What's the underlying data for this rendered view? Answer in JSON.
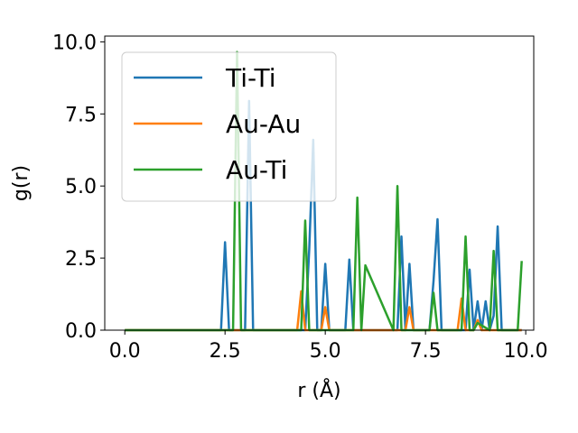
{
  "chart_data": {
    "type": "line",
    "title": "",
    "xlabel": "r (Å)",
    "ylabel": "g(r)",
    "xlim": [
      -0.5,
      10.2
    ],
    "ylim": [
      0,
      10.2
    ],
    "xticks": [
      0.0,
      2.5,
      5.0,
      7.5,
      10.0
    ],
    "xtick_labels": [
      "0.0",
      "2.5",
      "5.0",
      "7.5",
      "10.0"
    ],
    "yticks": [
      0.0,
      2.5,
      5.0,
      7.5,
      10.0
    ],
    "ytick_labels": [
      "0.0",
      "2.5",
      "5.0",
      "7.5",
      "10.0"
    ],
    "grid": false,
    "legend_position": "upper-left",
    "series": [
      {
        "name": "Ti-Ti",
        "color": "#1f77b4",
        "x": [
          0.0,
          2.4,
          2.5,
          2.6,
          3.0,
          3.1,
          3.2,
          4.5,
          4.6,
          4.7,
          4.8,
          4.9,
          5.0,
          5.1,
          5.5,
          5.6,
          5.7,
          6.8,
          6.9,
          7.0,
          7.1,
          7.2,
          7.6,
          7.7,
          7.8,
          7.9,
          8.5,
          8.6,
          8.7,
          8.8,
          8.9,
          9.0,
          9.1,
          9.2,
          9.3,
          9.4,
          9.5,
          9.9
        ],
        "y": [
          0.0,
          0.0,
          3.05,
          0.0,
          0.0,
          7.95,
          0.0,
          0.0,
          2.8,
          6.6,
          0.0,
          0.0,
          2.3,
          0.0,
          0.0,
          2.45,
          0.0,
          0.0,
          3.25,
          0.0,
          2.3,
          0.0,
          0.0,
          1.7,
          3.85,
          0.0,
          0.0,
          2.1,
          0.0,
          1.0,
          0.0,
          1.0,
          0.0,
          0.5,
          3.6,
          0.0,
          0.0,
          0.0
        ]
      },
      {
        "name": "Au-Au",
        "color": "#ff7f0e",
        "x": [
          0.0,
          4.3,
          4.4,
          4.5,
          4.9,
          5.0,
          5.1,
          6.9,
          7.0,
          7.1,
          7.2,
          8.3,
          8.4,
          8.5,
          8.7,
          8.8,
          8.9,
          9.9
        ],
        "y": [
          0.0,
          0.0,
          1.35,
          0.0,
          0.0,
          0.8,
          0.0,
          0.0,
          0.0,
          0.8,
          0.0,
          0.0,
          1.1,
          0.0,
          0.0,
          0.35,
          0.0,
          0.0
        ]
      },
      {
        "name": "Au-Ti",
        "color": "#2ca02c",
        "x": [
          0.0,
          2.7,
          2.8,
          2.9,
          4.4,
          4.5,
          4.6,
          5.7,
          5.8,
          5.9,
          6.0,
          6.7,
          6.8,
          6.9,
          7.6,
          7.7,
          7.8,
          8.4,
          8.5,
          8.6,
          8.7,
          8.8,
          9.1,
          9.2,
          9.3,
          9.8,
          9.9
        ],
        "y": [
          0.0,
          0.0,
          9.65,
          0.0,
          0.0,
          3.8,
          0.0,
          0.0,
          4.6,
          0.0,
          2.25,
          0.0,
          5.0,
          0.0,
          0.0,
          1.3,
          0.0,
          0.0,
          3.25,
          0.0,
          0.0,
          0.25,
          0.0,
          2.75,
          0.0,
          0.0,
          2.4
        ]
      }
    ]
  }
}
